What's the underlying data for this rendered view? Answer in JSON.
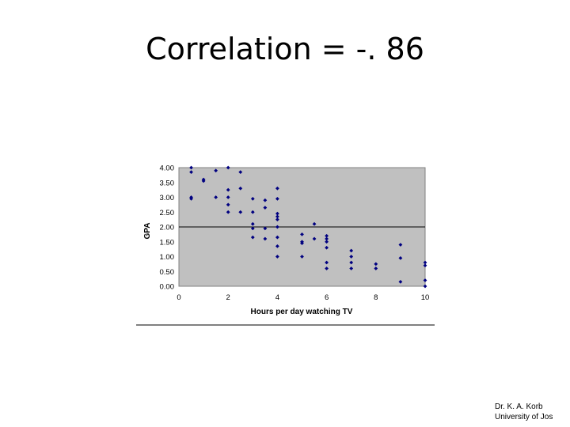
{
  "slide": {
    "title": "Correlation = -. 86"
  },
  "credit": {
    "line1": "Dr. K. A. Korb",
    "line2": "University of Jos"
  },
  "colors": {
    "plot_background": "#c0c0c0",
    "marker": "#000080",
    "gridline": "#000000"
  },
  "chart_data": {
    "type": "scatter",
    "title": "",
    "xlabel": "Hours per day watching TV",
    "ylabel": "GPA",
    "xlim": [
      0,
      10
    ],
    "ylim": [
      0,
      4
    ],
    "xticks": [
      0,
      2,
      4,
      6,
      8,
      10
    ],
    "yticks": [
      0,
      0.5,
      1,
      1.5,
      2,
      2.5,
      3,
      3.5,
      4
    ],
    "xtick_labels": [
      "0",
      "2",
      "4",
      "6",
      "8",
      "10"
    ],
    "ytick_labels": [
      "0.00",
      "0.50",
      "1.00",
      "1.50",
      "2.00",
      "2.50",
      "3.00",
      "3.50",
      "4.00"
    ],
    "grid": "horizontal line at 2.00",
    "legend": "none",
    "points": [
      {
        "x": 0.5,
        "y": 4.0
      },
      {
        "x": 0.5,
        "y": 3.85
      },
      {
        "x": 0.5,
        "y": 3.0
      },
      {
        "x": 0.5,
        "y": 2.95
      },
      {
        "x": 1.0,
        "y": 3.6
      },
      {
        "x": 1.0,
        "y": 3.55
      },
      {
        "x": 1.5,
        "y": 3.9
      },
      {
        "x": 1.5,
        "y": 3.0
      },
      {
        "x": 2.0,
        "y": 4.0
      },
      {
        "x": 2.0,
        "y": 3.25
      },
      {
        "x": 2.0,
        "y": 3.0
      },
      {
        "x": 2.0,
        "y": 2.75
      },
      {
        "x": 2.0,
        "y": 2.5
      },
      {
        "x": 2.5,
        "y": 3.85
      },
      {
        "x": 2.5,
        "y": 3.3
      },
      {
        "x": 2.5,
        "y": 2.5
      },
      {
        "x": 3.0,
        "y": 2.95
      },
      {
        "x": 3.0,
        "y": 2.5
      },
      {
        "x": 3.0,
        "y": 2.1
      },
      {
        "x": 3.0,
        "y": 1.95
      },
      {
        "x": 3.0,
        "y": 1.65
      },
      {
        "x": 3.5,
        "y": 2.9
      },
      {
        "x": 3.5,
        "y": 2.65
      },
      {
        "x": 3.5,
        "y": 1.95
      },
      {
        "x": 3.5,
        "y": 1.6
      },
      {
        "x": 4.0,
        "y": 3.3
      },
      {
        "x": 4.0,
        "y": 2.95
      },
      {
        "x": 4.0,
        "y": 2.45
      },
      {
        "x": 4.0,
        "y": 2.35
      },
      {
        "x": 4.0,
        "y": 2.25
      },
      {
        "x": 4.0,
        "y": 2.0
      },
      {
        "x": 4.0,
        "y": 1.65
      },
      {
        "x": 4.0,
        "y": 1.35
      },
      {
        "x": 4.0,
        "y": 1.0
      },
      {
        "x": 5.0,
        "y": 1.75
      },
      {
        "x": 5.0,
        "y": 1.5
      },
      {
        "x": 5.0,
        "y": 1.45
      },
      {
        "x": 5.0,
        "y": 1.0
      },
      {
        "x": 5.5,
        "y": 2.1
      },
      {
        "x": 5.5,
        "y": 1.6
      },
      {
        "x": 6.0,
        "y": 1.7
      },
      {
        "x": 6.0,
        "y": 1.6
      },
      {
        "x": 6.0,
        "y": 1.5
      },
      {
        "x": 6.0,
        "y": 1.3
      },
      {
        "x": 6.0,
        "y": 0.8
      },
      {
        "x": 6.0,
        "y": 0.6
      },
      {
        "x": 7.0,
        "y": 1.2
      },
      {
        "x": 7.0,
        "y": 1.0
      },
      {
        "x": 7.0,
        "y": 0.8
      },
      {
        "x": 7.0,
        "y": 0.6
      },
      {
        "x": 8.0,
        "y": 0.75
      },
      {
        "x": 8.0,
        "y": 0.6
      },
      {
        "x": 9.0,
        "y": 1.4
      },
      {
        "x": 9.0,
        "y": 0.95
      },
      {
        "x": 9.0,
        "y": 0.15
      },
      {
        "x": 10.0,
        "y": 0.8
      },
      {
        "x": 10.0,
        "y": 0.7
      },
      {
        "x": 10.0,
        "y": 0.2
      },
      {
        "x": 10.0,
        "y": 0.0
      }
    ]
  }
}
